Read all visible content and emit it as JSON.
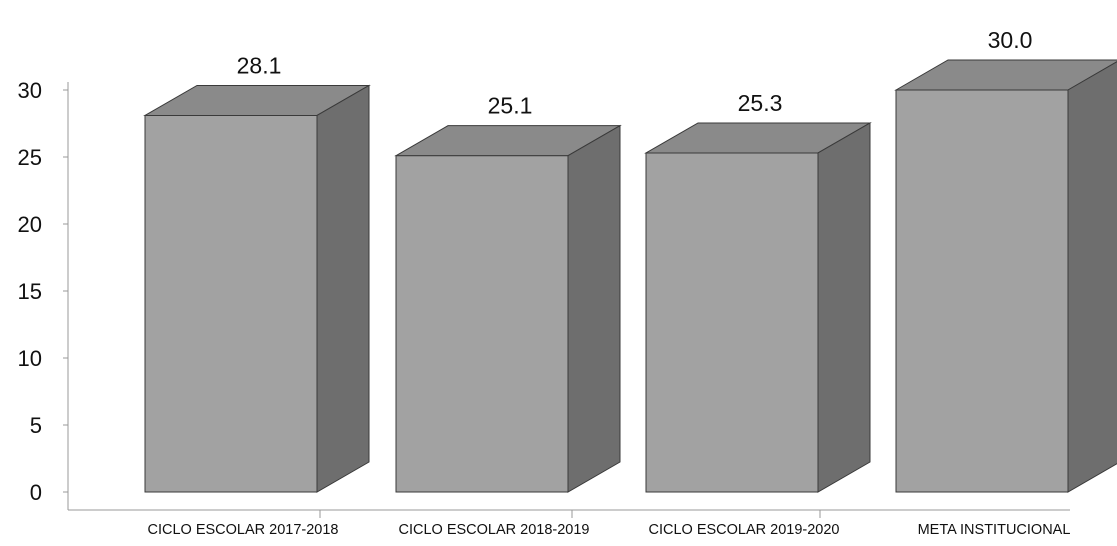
{
  "chart_data": {
    "type": "bar",
    "title": "",
    "xlabel": "",
    "ylabel": "",
    "categories": [
      "CICLO ESCOLAR 2017-2018",
      "CICLO ESCOLAR 2018-2019",
      "CICLO ESCOLAR 2019-2020",
      "META INSTITUCIONAL"
    ],
    "values": [
      28.1,
      25.1,
      25.3,
      30.0
    ],
    "data_labels": [
      "28.1",
      "25.1",
      "25.3",
      "30.0"
    ],
    "ylim": [
      0,
      30
    ],
    "yticks": [
      "0",
      "5",
      "10",
      "15",
      "20",
      "25",
      "30"
    ],
    "grid": false,
    "legend": "none",
    "style": "3d-column",
    "colors": {
      "front": "#a2a2a2",
      "top": "#8a8a8a",
      "side": "#6e6e6e",
      "edge": "#3a3a3a"
    }
  }
}
